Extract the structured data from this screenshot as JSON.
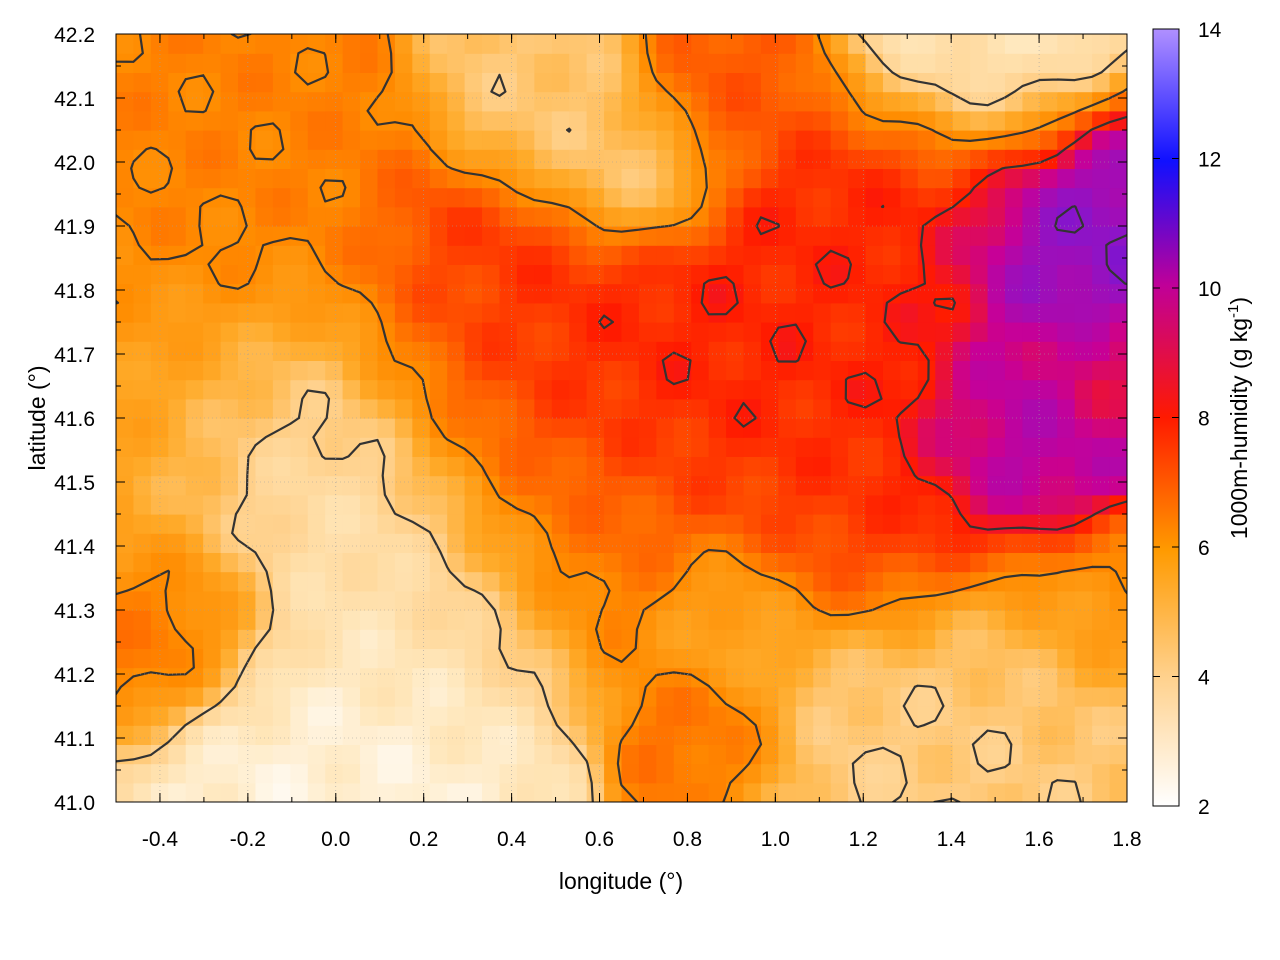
{
  "chart_data": {
    "type": "heatmap",
    "xlabel": "longitude (°)",
    "ylabel": "latitude (°)",
    "colorbar_label": "1000m-humidity (g kg-1)",
    "colorbar_label_parts": [
      "1000m-humidity (g kg",
      "-1",
      ")"
    ],
    "xlim": [
      -0.5,
      1.8
    ],
    "ylim": [
      41.0,
      42.2
    ],
    "clim": [
      2,
      14
    ],
    "x_ticks": [
      "-0.4",
      "-0.2",
      "0.0",
      "0.2",
      "0.4",
      "0.6",
      "0.8",
      "1.0",
      "1.2",
      "1.4",
      "1.6",
      "1.8"
    ],
    "y_ticks": [
      "41.0",
      "41.1",
      "41.2",
      "41.3",
      "41.4",
      "41.5",
      "41.6",
      "41.7",
      "41.8",
      "41.9",
      "42.0",
      "42.1",
      "42.2"
    ],
    "colorbar_ticks": [
      "2",
      "4",
      "6",
      "8",
      "10",
      "12",
      "14"
    ],
    "grid": true,
    "contours": true,
    "colormap": [
      "#ffffff",
      "#ffe0a0",
      "#ffa500",
      "#ff6a00",
      "#ff1a00",
      "#c000a0",
      "#0000ff",
      "#b080ff"
    ],
    "humidity_field": [
      {
        "lon": -0.45,
        "lat": 41.6,
        "value": 5.5,
        "radius": 0.25
      },
      {
        "lon": -0.05,
        "lat": 41.5,
        "value": 3.0,
        "radius": 0.22
      },
      {
        "lon": 0.05,
        "lat": 41.1,
        "value": 2.5,
        "radius": 0.18
      },
      {
        "lon": 0.15,
        "lat": 41.3,
        "value": 3.2,
        "radius": 0.2
      },
      {
        "lon": -0.35,
        "lat": 41.3,
        "value": 6.8,
        "radius": 0.12
      },
      {
        "lon": -0.3,
        "lat": 41.95,
        "value": 6.2,
        "radius": 0.2
      },
      {
        "lon": 0.4,
        "lat": 41.7,
        "value": 7.5,
        "radius": 0.22
      },
      {
        "lon": 0.7,
        "lat": 41.65,
        "value": 8.0,
        "radius": 0.2
      },
      {
        "lon": 0.55,
        "lat": 41.45,
        "value": 6.5,
        "radius": 0.2
      },
      {
        "lon": 0.5,
        "lat": 42.1,
        "value": 4.2,
        "radius": 0.12
      },
      {
        "lon": 0.68,
        "lat": 41.98,
        "value": 4.0,
        "radius": 0.1
      },
      {
        "lon": 0.9,
        "lat": 42.12,
        "value": 7.0,
        "radius": 0.12
      },
      {
        "lon": 1.1,
        "lat": 41.75,
        "value": 7.8,
        "radius": 0.2
      },
      {
        "lon": 1.2,
        "lat": 41.45,
        "value": 7.5,
        "radius": 0.18
      },
      {
        "lon": 1.45,
        "lat": 42.15,
        "value": 3.0,
        "radius": 0.15
      },
      {
        "lon": 1.65,
        "lat": 41.9,
        "value": 10.0,
        "radius": 0.15
      },
      {
        "lon": 1.55,
        "lat": 41.55,
        "value": 9.5,
        "radius": 0.15
      },
      {
        "lon": 1.75,
        "lat": 41.65,
        "value": 8.5,
        "radius": 0.1
      },
      {
        "lon": 1.55,
        "lat": 41.15,
        "value": 4.2,
        "radius": 0.2
      },
      {
        "lon": 1.2,
        "lat": 41.1,
        "value": 4.0,
        "radius": 0.18
      },
      {
        "lon": 0.9,
        "lat": 41.3,
        "value": 5.0,
        "radius": 0.1
      },
      {
        "lon": 0.88,
        "lat": 41.1,
        "value": 6.8,
        "radius": 0.1
      },
      {
        "lon": 1.3,
        "lat": 41.95,
        "value": 7.8,
        "radius": 0.15
      },
      {
        "lon": 1.75,
        "lat": 41.3,
        "value": 6.0,
        "radius": 0.12
      }
    ],
    "contour_levels": [
      4,
      6,
      8,
      10
    ]
  }
}
